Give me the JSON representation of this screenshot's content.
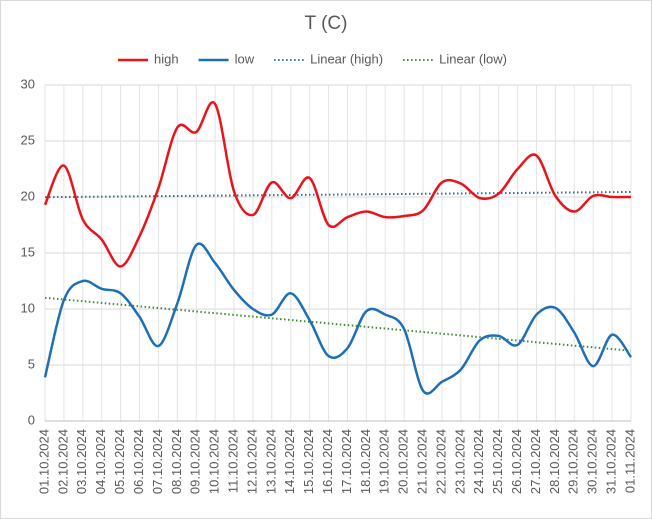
{
  "chart_data": {
    "type": "line",
    "title": "T (C)",
    "categories": [
      "01.10.2024",
      "02.10.2024",
      "03.10.2024",
      "04.10.2024",
      "05.10.2024",
      "06.10.2024",
      "07.10.2024",
      "08.10.2024",
      "09.10.2024",
      "10.10.2024",
      "11.10.2024",
      "12.10.2024",
      "13.10.2024",
      "14.10.2024",
      "15.10.2024",
      "16.10.2024",
      "17.10.2024",
      "18.10.2024",
      "19.10.2024",
      "20.10.2024",
      "21.10.2024",
      "22.10.2024",
      "23.10.2024",
      "24.10.2024",
      "25.10.2024",
      "26.10.2024",
      "27.10.2024",
      "28.10.2024",
      "29.10.2024",
      "30.10.2024",
      "31.10.2024",
      "01.11.2024"
    ],
    "series": [
      {
        "name": "high",
        "color": "#e8141b",
        "values": [
          19.3,
          22.8,
          18,
          16.2,
          13.8,
          16.5,
          20.8,
          26.2,
          25.8,
          28.3,
          20.5,
          18.4,
          21.3,
          19.9,
          21.7,
          17.5,
          18.2,
          18.7,
          18.2,
          18.3,
          18.8,
          21.3,
          21.2,
          19.9,
          20.3,
          22.5,
          23.7,
          20.1,
          18.7,
          20.1,
          20.0,
          20.0
        ]
      },
      {
        "name": "low",
        "color": "#1f6fb5",
        "values": [
          3.9,
          10.8,
          12.5,
          11.8,
          11.4,
          9.3,
          6.7,
          10.5,
          15.7,
          14.1,
          11.7,
          10.0,
          9.5,
          11.4,
          9.0,
          5.8,
          6.5,
          9.8,
          9.5,
          8.2,
          2.7,
          3.5,
          4.6,
          7.2,
          7.6,
          6.8,
          9.5,
          10.1,
          7.9,
          4.9,
          7.7,
          5.7
        ]
      }
    ],
    "trendlines": [
      {
        "name": "Linear (high)",
        "of": "high",
        "color": "#2e6f9e"
      },
      {
        "name": "Linear (low)",
        "of": "low",
        "color": "#3c8c2e"
      }
    ],
    "ylim": [
      0,
      30
    ],
    "yticks": [
      0,
      5,
      10,
      15,
      20,
      25,
      30
    ],
    "grid": true,
    "legend": "top"
  }
}
